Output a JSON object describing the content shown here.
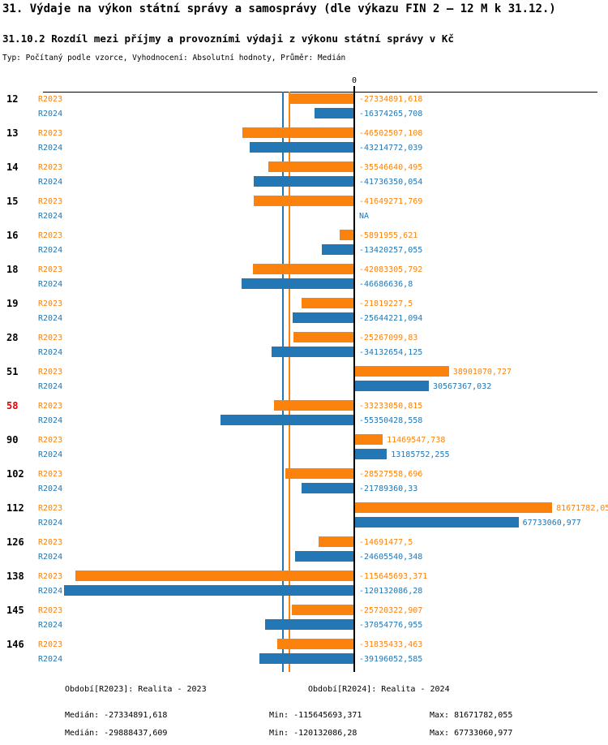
{
  "page": {
    "title": "31. Výdaje na výkon státní správy a samosprávy (dle výkazu FIN 2 – 12 M k 31.12.)",
    "subtitle": "31.10.2 Rozdíl mezi příjmy a provozními výdaji z výkonu státní správy v Kč",
    "meta": "Typ: Počítaný podle vzorce, Vyhodnocení: Absolutní hodnoty, Průměr: Medián"
  },
  "colors": {
    "r2023": "#FB830D",
    "r2024": "#2377B4",
    "highlight_category": "#E00000",
    "axis": "#000000"
  },
  "chart_data": {
    "type": "bar",
    "orientation": "horizontal",
    "title": "31.10.2 Rozdíl mezi příjmy a provozními výdaji z výkonu státní správy v Kč",
    "zero_label": "0",
    "xlim": [
      -129000000,
      100800000
    ],
    "grid": false,
    "legend_position": "bottom",
    "series_names": [
      "R2023",
      "R2024"
    ],
    "medians": {
      "R2023": -27334891.618,
      "R2024": -29888437.609
    },
    "groups": [
      {
        "category": "12",
        "highlight": false,
        "bars": [
          {
            "series": "R2023",
            "value": -27334891.618,
            "label": "-27334891,618"
          },
          {
            "series": "R2024",
            "value": -16374265.708,
            "label": "-16374265,708"
          }
        ]
      },
      {
        "category": "13",
        "highlight": false,
        "bars": [
          {
            "series": "R2023",
            "value": -46502507.108,
            "label": "-46502507,108"
          },
          {
            "series": "R2024",
            "value": -43214772.039,
            "label": "-43214772,039"
          }
        ]
      },
      {
        "category": "14",
        "highlight": false,
        "bars": [
          {
            "series": "R2023",
            "value": -35546640.495,
            "label": "-35546640,495"
          },
          {
            "series": "R2024",
            "value": -41736350.054,
            "label": "-41736350,054"
          }
        ]
      },
      {
        "category": "15",
        "highlight": false,
        "bars": [
          {
            "series": "R2023",
            "value": -41649271.769,
            "label": "-41649271,769"
          },
          {
            "series": "R2024",
            "value": null,
            "label": "NA"
          }
        ]
      },
      {
        "category": "16",
        "highlight": false,
        "bars": [
          {
            "series": "R2023",
            "value": -5891955.621,
            "label": "-5891955,621"
          },
          {
            "series": "R2024",
            "value": -13420257.055,
            "label": "-13420257,055"
          }
        ]
      },
      {
        "category": "18",
        "highlight": false,
        "bars": [
          {
            "series": "R2023",
            "value": -42083305.792,
            "label": "-42083305,792"
          },
          {
            "series": "R2024",
            "value": -46686636.8,
            "label": "-46686636,8"
          }
        ]
      },
      {
        "category": "19",
        "highlight": false,
        "bars": [
          {
            "series": "R2023",
            "value": -21819227.5,
            "label": "-21819227,5"
          },
          {
            "series": "R2024",
            "value": -25644221.094,
            "label": "-25644221,094"
          }
        ]
      },
      {
        "category": "28",
        "highlight": false,
        "bars": [
          {
            "series": "R2023",
            "value": -25267099.83,
            "label": "-25267099,83"
          },
          {
            "series": "R2024",
            "value": -34132654.125,
            "label": "-34132654,125"
          }
        ]
      },
      {
        "category": "51",
        "highlight": false,
        "bars": [
          {
            "series": "R2023",
            "value": 38901070.727,
            "label": "38901070,727"
          },
          {
            "series": "R2024",
            "value": 30567367.032,
            "label": "30567367,032"
          }
        ]
      },
      {
        "category": "58",
        "highlight": true,
        "bars": [
          {
            "series": "R2023",
            "value": -33233050.815,
            "label": "-33233050,815"
          },
          {
            "series": "R2024",
            "value": -55350428.558,
            "label": "-55350428,558"
          }
        ]
      },
      {
        "category": "90",
        "highlight": false,
        "bars": [
          {
            "series": "R2023",
            "value": 11469547.738,
            "label": "11469547,738"
          },
          {
            "series": "R2024",
            "value": 13185752.255,
            "label": "13185752,255"
          }
        ]
      },
      {
        "category": "102",
        "highlight": false,
        "bars": [
          {
            "series": "R2023",
            "value": -28527558.696,
            "label": "-28527558,696"
          },
          {
            "series": "R2024",
            "value": -21789360.33,
            "label": "-21789360,33"
          }
        ]
      },
      {
        "category": "112",
        "highlight": false,
        "bars": [
          {
            "series": "R2023",
            "value": 81671782.05,
            "label": "81671782,05"
          },
          {
            "series": "R2024",
            "value": 67733060.977,
            "label": "67733060,977"
          }
        ]
      },
      {
        "category": "126",
        "highlight": false,
        "bars": [
          {
            "series": "R2023",
            "value": -14691477.5,
            "label": "-14691477,5"
          },
          {
            "series": "R2024",
            "value": -24605540.348,
            "label": "-24605540,348"
          }
        ]
      },
      {
        "category": "138",
        "highlight": false,
        "bars": [
          {
            "series": "R2023",
            "value": -115645693.371,
            "label": "-115645693,371"
          },
          {
            "series": "R2024",
            "value": -120132086.28,
            "label": "-120132086,28"
          }
        ]
      },
      {
        "category": "145",
        "highlight": false,
        "bars": [
          {
            "series": "R2023",
            "value": -25720322.907,
            "label": "-25720322,907"
          },
          {
            "series": "R2024",
            "value": -37054776.955,
            "label": "-37054776,955"
          }
        ]
      },
      {
        "category": "146",
        "highlight": false,
        "bars": [
          {
            "series": "R2023",
            "value": -31835433.463,
            "label": "-31835433,463"
          },
          {
            "series": "R2024",
            "value": -39196052.585,
            "label": "-39196052,585"
          }
        ]
      }
    ]
  },
  "footer": {
    "legend_r2023": "Období[R2023]: Realita - 2023",
    "legend_r2024": "Období[R2024]: Realita - 2024",
    "stats_r2023": {
      "median": "Medián: -27334891,618",
      "min": "Min: -115645693,371",
      "max": "Max: 81671782,055"
    },
    "stats_r2024": {
      "median": "Medián: -29888437,609",
      "min": "Min: -120132086,28",
      "max": "Max: 67733060,977"
    }
  }
}
